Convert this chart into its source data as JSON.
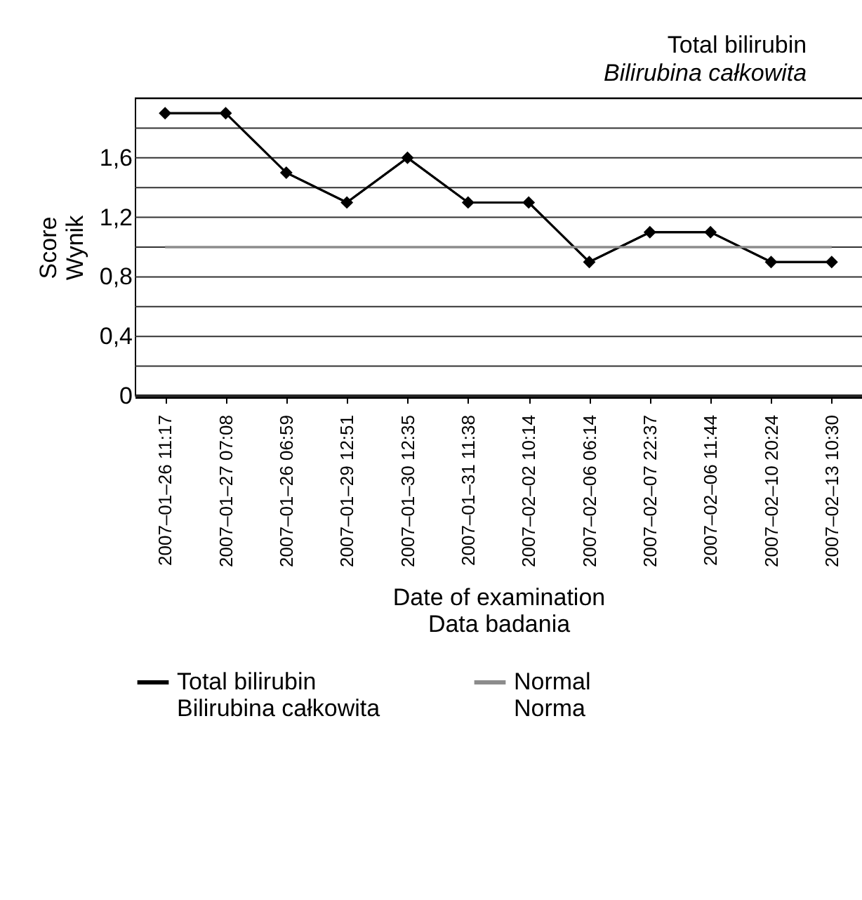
{
  "chart_data": {
    "type": "line",
    "title": "Total bilirubin",
    "subtitle": "Bilirubina całkowita",
    "xlabel": [
      "Date of examination",
      "Data badania"
    ],
    "ylabel": [
      "Score",
      "Wynik"
    ],
    "categories": [
      "2007–01–26 11:17",
      "2007–01–27 07:08",
      "2007–01–26 06:59",
      "2007–01–29 12:51",
      "2007–01–30 12:35",
      "2007–01–31 11:38",
      "2007–02–02 10:14",
      "2007–02–06 06:14",
      "2007–02–07 22:37",
      "2007–02–06 11:44",
      "2007–02–10 20:24",
      "2007–02–13 10:30"
    ],
    "series": [
      {
        "name": "Total bilirubin\nBilirubina całkowita",
        "color": "#000000",
        "marker": "diamond",
        "values": [
          1.9,
          1.9,
          1.5,
          1.3,
          1.6,
          1.3,
          1.3,
          0.9,
          1.1,
          1.1,
          0.9,
          0.9
        ]
      },
      {
        "name": "Normal\nNorma",
        "color": "#8c8c8c",
        "marker": "none",
        "values": [
          1,
          1,
          1,
          1,
          1,
          1,
          1,
          1,
          1,
          1,
          1,
          1
        ]
      }
    ],
    "ylim": [
      0,
      2
    ],
    "yticks": [
      0,
      {
        "value": 0.2,
        "label": null
      },
      {
        "value": 0.4,
        "label": "0,4"
      },
      {
        "value": 0.6,
        "label": null
      },
      {
        "value": 0.8,
        "label": "0,8"
      },
      {
        "value": 1,
        "label": null
      },
      {
        "value": 1.2,
        "label": "1,2"
      },
      {
        "value": 1.4,
        "label": null
      },
      {
        "value": 1.6,
        "label": "1,6"
      },
      {
        "value": 1.8,
        "label": null
      },
      {
        "value": 2,
        "label": null
      }
    ],
    "grid": "y",
    "legend": "bottom",
    "line_style": "solid"
  }
}
